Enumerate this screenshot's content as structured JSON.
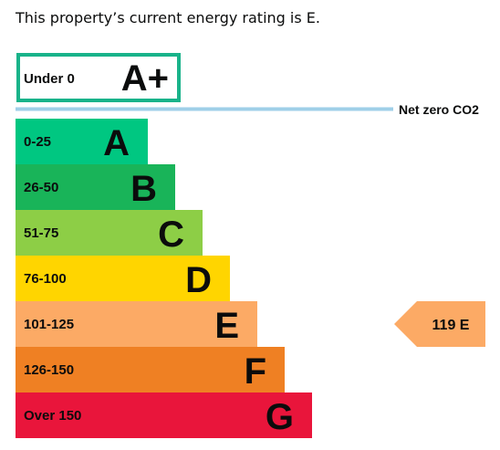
{
  "intro_text": "This property’s current energy rating is E.",
  "chart_data": {
    "type": "bar",
    "title": "",
    "xlabel": "",
    "ylabel": "",
    "categories": [
      "Under 0",
      "0-25",
      "26-50",
      "51-75",
      "76-100",
      "101-125",
      "126-150",
      "Over 150"
    ],
    "bands": [
      {
        "range": "Under 0",
        "letter": "A+",
        "color": "#ffffff",
        "outline": "#19b38a",
        "max": 0
      },
      {
        "range": "0-25",
        "letter": "A",
        "color": "#00c781",
        "max": 25
      },
      {
        "range": "26-50",
        "letter": "B",
        "color": "#19b459",
        "max": 50
      },
      {
        "range": "51-75",
        "letter": "C",
        "color": "#8dce46",
        "max": 75
      },
      {
        "range": "76-100",
        "letter": "D",
        "color": "#ffd500",
        "max": 100
      },
      {
        "range": "101-125",
        "letter": "E",
        "color": "#fcaa65",
        "max": 125
      },
      {
        "range": "126-150",
        "letter": "F",
        "color": "#ef8023",
        "max": 150
      },
      {
        "range": "Over 150",
        "letter": "G",
        "color": "#e9153b",
        "max": 175
      }
    ],
    "net_zero_label": "Net zero CO2",
    "net_zero_line_color": "#9fcfe8",
    "current_rating": {
      "value": 119,
      "letter": "E",
      "label": "119 E",
      "color": "#fcaa65"
    }
  }
}
